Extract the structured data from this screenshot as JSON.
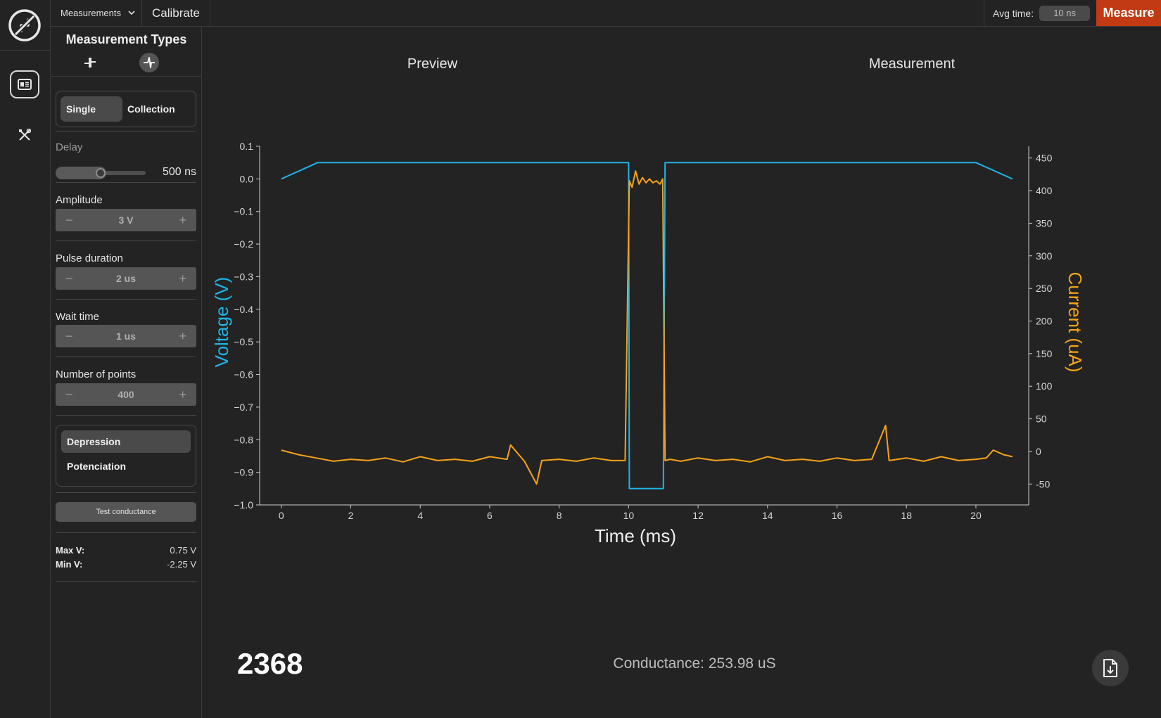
{
  "topbar": {
    "menu_label": "Measurements",
    "calibrate_label": "Calibrate",
    "avg_time_label": "Avg time:",
    "avg_time_value": "10 ns",
    "measure_label": "Measure"
  },
  "rail": {
    "items": [
      {
        "icon": "measurements-card-icon",
        "active": true
      },
      {
        "icon": "tools-icon",
        "active": false
      }
    ]
  },
  "panel": {
    "title": "Measurement Types",
    "type_icons": [
      "step-pulse-icon",
      "spike-pulse-icon"
    ],
    "mode_options": [
      "Single",
      "Collection"
    ],
    "mode_selected": "Single",
    "delay": {
      "label": "Delay",
      "value": "500 ns",
      "level_fraction": 0.5
    },
    "amplitude": {
      "label": "Amplitude",
      "value": "3 V"
    },
    "pulse_duration": {
      "label": "Pulse duration",
      "value": "2 us"
    },
    "wait_time": {
      "label": "Wait time",
      "value": "1 us"
    },
    "num_points": {
      "label": "Number of points",
      "value": "400"
    },
    "plasticity_options": [
      "Depression",
      "Potenciation"
    ],
    "plasticity_selected": "Depression",
    "test_button": "Test conductance",
    "max_v": {
      "label": "Max V:",
      "value": "0.75 V"
    },
    "min_v": {
      "label": "Min V:",
      "value": "-2.25 V"
    },
    "stepper_minus": "−",
    "stepper_plus": "+"
  },
  "tabs": [
    {
      "label": "Preview",
      "active": false
    },
    {
      "label": "Measurement",
      "active": true
    }
  ],
  "footer": {
    "counter": "2368",
    "conductance": "Conductance: 253.98 uS"
  },
  "chart_data": {
    "type": "line",
    "xlabel": "Time (ms)",
    "ylabel": "Voltage (V)",
    "y2label": "Current (uA)",
    "xlim": [
      -0.3,
      21.5
    ],
    "ylim": [
      -1.0,
      0.1
    ],
    "y2lim": [
      -82,
      468
    ],
    "xticks": [
      0,
      2,
      4,
      6,
      8,
      10,
      12,
      14,
      16,
      18,
      20
    ],
    "yticks": [
      "0.1",
      "0.0",
      "−0.1",
      "−0.2",
      "−0.3",
      "−0.4",
      "−0.5",
      "−0.6",
      "−0.7",
      "−0.8",
      "−0.9",
      "−1.0"
    ],
    "y2ticks": [
      450,
      400,
      350,
      300,
      250,
      200,
      150,
      100,
      50,
      0,
      -50
    ],
    "colors": {
      "voltage": "#1fb4e8",
      "current": "#f5a31a",
      "axis": "#cccccc"
    },
    "series": [
      {
        "name": "Voltage (V)",
        "axis": "left",
        "x": [
          0,
          1.05,
          10.0,
          10.02,
          11.0,
          11.05,
          20.0,
          21.05
        ],
        "y": [
          0.0,
          0.05,
          0.05,
          -0.95,
          -0.95,
          0.05,
          0.05,
          0.0
        ]
      },
      {
        "name": "Current (uA)",
        "axis": "right",
        "x": [
          0.0,
          0.5,
          1.0,
          1.5,
          2.0,
          2.5,
          3.0,
          3.5,
          4.0,
          4.5,
          5.0,
          5.5,
          6.0,
          6.5,
          6.6,
          7.0,
          7.35,
          7.5,
          8.0,
          8.5,
          9.0,
          9.5,
          9.9,
          10.02,
          10.1,
          10.2,
          10.3,
          10.4,
          10.5,
          10.6,
          10.7,
          10.8,
          10.9,
          10.98,
          11.05,
          11.2,
          11.5,
          12.0,
          12.5,
          13.0,
          13.5,
          14.0,
          14.5,
          15.0,
          15.5,
          16.0,
          16.5,
          17.0,
          17.4,
          17.5,
          18.0,
          18.5,
          19.0,
          19.5,
          20.0,
          20.3,
          20.5,
          20.8,
          21.05
        ],
        "y": [
          2,
          -5,
          -10,
          -15,
          -12,
          -14,
          -10,
          -16,
          -8,
          -14,
          -12,
          -15,
          -8,
          -12,
          10,
          -15,
          -50,
          -14,
          -12,
          -15,
          -10,
          -14,
          -14,
          415,
          405,
          430,
          410,
          420,
          412,
          418,
          412,
          415,
          410,
          418,
          -14,
          -12,
          -15,
          -10,
          -14,
          -12,
          -16,
          -8,
          -14,
          -12,
          -15,
          -10,
          -14,
          -12,
          40,
          -14,
          -10,
          -15,
          -8,
          -14,
          -12,
          -10,
          2,
          -5,
          -8
        ]
      }
    ]
  }
}
